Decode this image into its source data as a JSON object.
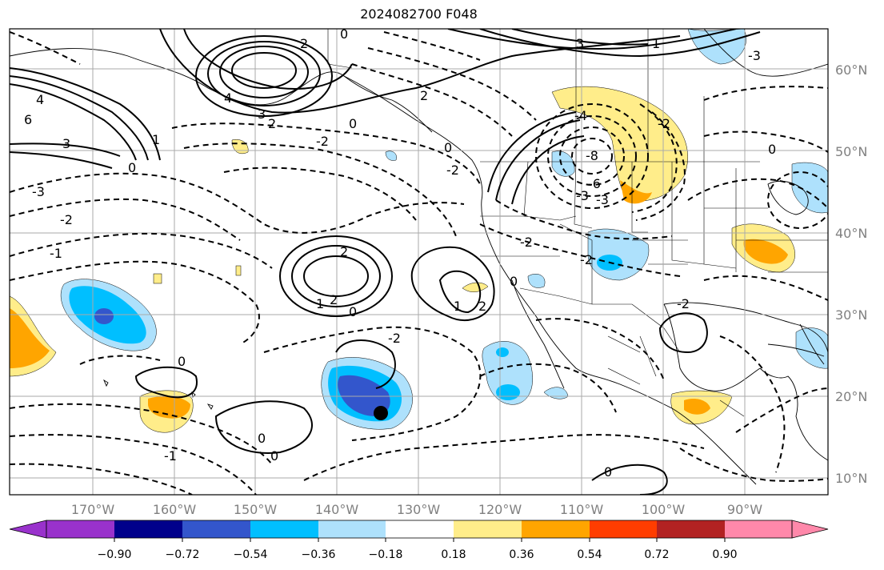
{
  "title": "2024082700 F048",
  "lat_labels": [
    "60°N",
    "50°N",
    "40°N",
    "30°N",
    "20°N",
    "10°N"
  ],
  "lon_labels": [
    "170°W",
    "160°W",
    "150°W",
    "140°W",
    "130°W",
    "120°W",
    "110°W",
    "100°W",
    "90°W"
  ],
  "colorbar": {
    "colors": [
      "#9932cc",
      "#00008b",
      "#3356cc",
      "#00bfff",
      "#aee1fc",
      "#ffffff",
      "#ffed8a",
      "#ffa500",
      "#ff3d00",
      "#b22222",
      "#ff88aa"
    ],
    "tick_labels": [
      "−0.90",
      "−0.72",
      "−0.54",
      "−0.36",
      "−0.18",
      "0.18",
      "0.36",
      "0.54",
      "0.72",
      "0.90"
    ]
  },
  "contour_labels": [
    "2",
    "0",
    "3",
    "4",
    "2",
    "6",
    "3",
    "1",
    "0",
    "4",
    "-3",
    "-2",
    "-1",
    "1",
    "-3",
    "3",
    "2",
    "0",
    "-2",
    "0",
    "-2",
    "-8",
    "-6",
    "-4",
    "-3",
    "-3",
    "-2",
    "-2",
    "0",
    "2",
    "2",
    "1",
    "1",
    "0",
    "-2",
    "2",
    "0",
    "-2",
    "0",
    "-2",
    "0",
    "0",
    "-1",
    "0"
  ],
  "marker": {
    "label": "storm-center"
  }
}
